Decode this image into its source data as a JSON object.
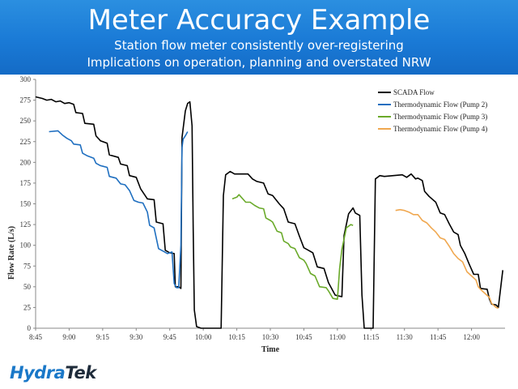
{
  "header": {
    "title": "Meter Accuracy Example",
    "subtitle1": "Station flow meter consistently over-registering",
    "subtitle2": "Implications on operation, planning and overstated NRW"
  },
  "logo": {
    "part1": "Hydra",
    "part2": "Tek"
  },
  "colors": {
    "banner": "#1a7ad6",
    "scada": "#000000",
    "pump2": "#1f6fc0",
    "pump3": "#6aaa2a",
    "pump4": "#f0a850"
  },
  "chart_data": {
    "type": "line",
    "xlabel": "Time",
    "ylabel": "Flow Rate (L/s)",
    "x_unit": "clock time (minutes after 8:45)",
    "xlim": [
      0,
      210
    ],
    "ylim": [
      0,
      300
    ],
    "x_ticks": [
      {
        "v": 0,
        "label": "8:45"
      },
      {
        "v": 15,
        "label": "9:00"
      },
      {
        "v": 30,
        "label": "9:15"
      },
      {
        "v": 45,
        "label": "9:30"
      },
      {
        "v": 60,
        "label": "9:45"
      },
      {
        "v": 75,
        "label": "10:00"
      },
      {
        "v": 90,
        "label": "10:15"
      },
      {
        "v": 105,
        "label": "10:30"
      },
      {
        "v": 120,
        "label": "10:45"
      },
      {
        "v": 135,
        "label": "11:00"
      },
      {
        "v": 150,
        "label": "11:15"
      },
      {
        "v": 165,
        "label": "11:30"
      },
      {
        "v": 180,
        "label": "11:45"
      },
      {
        "v": 195,
        "label": "12:00"
      }
    ],
    "y_ticks": [
      0,
      25,
      50,
      75,
      100,
      125,
      150,
      175,
      200,
      225,
      250,
      275,
      300
    ],
    "grid": false,
    "legend_position": "top-right",
    "series": [
      {
        "name": "SCADA  Flow",
        "color": "#000000",
        "points": [
          [
            0,
            279
          ],
          [
            3,
            277
          ],
          [
            5,
            275
          ],
          [
            7,
            276
          ],
          [
            9,
            273
          ],
          [
            11,
            274
          ],
          [
            13,
            271
          ],
          [
            15,
            272
          ],
          [
            17,
            270
          ],
          [
            18,
            260
          ],
          [
            21,
            259
          ],
          [
            22,
            247
          ],
          [
            26,
            246
          ],
          [
            27,
            232
          ],
          [
            29,
            226
          ],
          [
            32,
            223
          ],
          [
            33,
            209
          ],
          [
            37,
            206
          ],
          [
            38,
            198
          ],
          [
            41,
            196
          ],
          [
            42,
            184
          ],
          [
            45,
            182
          ],
          [
            47,
            168
          ],
          [
            50,
            156
          ],
          [
            53,
            155
          ],
          [
            54,
            128
          ],
          [
            57,
            126
          ],
          [
            58,
            94
          ],
          [
            60,
            91
          ],
          [
            62,
            90
          ],
          [
            62.5,
            50
          ],
          [
            64,
            50
          ],
          [
            65,
            48
          ],
          [
            65.5,
            230
          ],
          [
            67,
            262
          ],
          [
            68,
            271
          ],
          [
            69,
            273
          ],
          [
            70,
            244
          ],
          [
            70.5,
            120
          ],
          [
            71,
            22
          ],
          [
            72,
            2
          ],
          [
            74,
            0
          ],
          [
            82,
            0
          ],
          [
            83,
            0
          ],
          [
            84,
            160
          ],
          [
            85,
            185
          ],
          [
            87,
            189
          ],
          [
            89,
            186
          ],
          [
            95,
            186
          ],
          [
            97,
            180
          ],
          [
            99,
            177
          ],
          [
            102,
            175
          ],
          [
            104,
            162
          ],
          [
            106,
            160
          ],
          [
            109,
            150
          ],
          [
            111,
            144
          ],
          [
            113,
            128
          ],
          [
            116,
            126
          ],
          [
            118,
            111
          ],
          [
            120,
            97
          ],
          [
            124,
            91
          ],
          [
            126,
            74
          ],
          [
            129,
            72
          ],
          [
            131,
            55
          ],
          [
            134,
            40
          ],
          [
            137,
            38
          ],
          [
            138,
            112
          ],
          [
            140,
            138
          ],
          [
            142,
            145
          ],
          [
            143,
            139
          ],
          [
            145,
            136
          ],
          [
            146,
            40
          ],
          [
            147,
            0
          ],
          [
            149,
            0
          ],
          [
            151,
            0
          ],
          [
            152,
            180
          ],
          [
            154,
            184
          ],
          [
            156,
            183
          ],
          [
            164,
            185
          ],
          [
            166,
            182
          ],
          [
            168,
            186
          ],
          [
            170,
            180
          ],
          [
            171,
            181
          ],
          [
            173,
            178
          ],
          [
            174,
            165
          ],
          [
            176,
            159
          ],
          [
            179,
            152
          ],
          [
            181,
            139
          ],
          [
            183,
            137
          ],
          [
            185,
            126
          ],
          [
            187,
            116
          ],
          [
            189,
            113
          ],
          [
            190,
            100
          ],
          [
            192,
            90
          ],
          [
            194,
            77
          ],
          [
            196,
            65
          ],
          [
            198,
            65
          ],
          [
            199,
            48
          ],
          [
            202,
            47
          ],
          [
            203,
            35
          ],
          [
            204,
            29
          ],
          [
            206,
            28
          ],
          [
            207,
            25
          ],
          [
            209,
            70
          ]
        ]
      },
      {
        "name": "Thermodynamic Flow (Pump 2)",
        "color": "#1f6fc0",
        "points": [
          [
            6,
            237
          ],
          [
            10,
            238
          ],
          [
            12,
            233
          ],
          [
            14,
            229
          ],
          [
            16,
            226
          ],
          [
            17,
            222
          ],
          [
            20,
            221
          ],
          [
            21,
            211
          ],
          [
            23,
            208
          ],
          [
            26,
            205
          ],
          [
            27,
            199
          ],
          [
            29,
            196
          ],
          [
            32,
            194
          ],
          [
            33,
            183
          ],
          [
            36,
            181
          ],
          [
            38,
            174
          ],
          [
            40,
            173
          ],
          [
            42,
            166
          ],
          [
            44,
            154
          ],
          [
            46,
            152
          ],
          [
            48,
            151
          ],
          [
            50,
            140
          ],
          [
            51,
            124
          ],
          [
            53,
            121
          ],
          [
            55,
            96
          ],
          [
            57,
            93
          ],
          [
            59,
            90
          ],
          [
            61,
            92
          ],
          [
            62,
            54
          ],
          [
            63,
            49
          ],
          [
            64,
            49
          ],
          [
            65,
            100
          ],
          [
            65.5,
            218
          ],
          [
            66,
            228
          ],
          [
            67,
            232
          ],
          [
            68,
            237
          ]
        ]
      },
      {
        "name": "Thermodynamic Flow (Pump 3)",
        "color": "#6aaa2a",
        "points": [
          [
            88,
            156
          ],
          [
            90,
            158
          ],
          [
            91,
            161
          ],
          [
            94,
            152
          ],
          [
            96,
            152
          ],
          [
            98,
            148
          ],
          [
            100,
            145
          ],
          [
            102,
            144
          ],
          [
            103,
            133
          ],
          [
            105,
            130
          ],
          [
            106,
            128
          ],
          [
            108,
            117
          ],
          [
            110,
            115
          ],
          [
            111,
            105
          ],
          [
            113,
            102
          ],
          [
            114,
            98
          ],
          [
            116,
            96
          ],
          [
            118,
            85
          ],
          [
            120,
            82
          ],
          [
            121,
            78
          ],
          [
            123,
            66
          ],
          [
            125,
            63
          ],
          [
            127,
            50
          ],
          [
            130,
            49
          ],
          [
            131,
            45
          ],
          [
            133,
            36
          ],
          [
            135,
            35
          ],
          [
            136,
            72
          ],
          [
            137,
            95
          ],
          [
            139,
            121
          ],
          [
            141,
            125
          ],
          [
            142,
            124
          ]
        ]
      },
      {
        "name": "Thermodynamic Flow (Pump 4)",
        "color": "#f0a850",
        "points": [
          [
            161,
            142
          ],
          [
            163,
            143
          ],
          [
            165,
            142
          ],
          [
            167,
            140
          ],
          [
            169,
            137
          ],
          [
            171,
            137
          ],
          [
            173,
            130
          ],
          [
            175,
            127
          ],
          [
            177,
            121
          ],
          [
            179,
            116
          ],
          [
            181,
            109
          ],
          [
            183,
            107
          ],
          [
            185,
            99
          ],
          [
            187,
            90
          ],
          [
            189,
            84
          ],
          [
            191,
            80
          ],
          [
            193,
            68
          ],
          [
            195,
            63
          ],
          [
            197,
            58
          ],
          [
            198,
            50
          ],
          [
            199,
            47
          ],
          [
            201,
            42
          ],
          [
            203,
            37
          ],
          [
            204,
            30
          ],
          [
            206,
            25
          ],
          [
            207,
            24
          ]
        ]
      }
    ]
  }
}
